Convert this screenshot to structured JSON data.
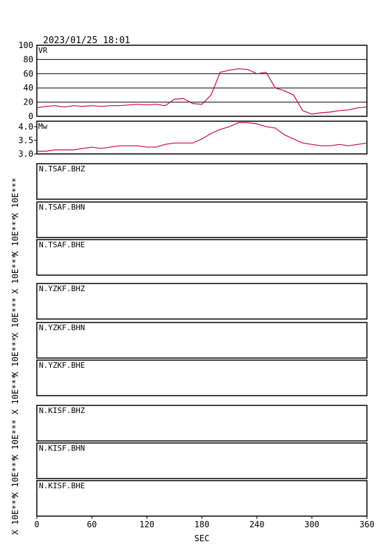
{
  "title": "2023/01/25 18:01",
  "chart_data": [
    {
      "type": "line",
      "label": "VR",
      "color": "#cc0044",
      "x": [
        0,
        10,
        20,
        30,
        40,
        50,
        60,
        70,
        80,
        90,
        100,
        110,
        120,
        130,
        140,
        150,
        160,
        170,
        180,
        190,
        200,
        210,
        220,
        230,
        240,
        250,
        260,
        270,
        280,
        290,
        300,
        310,
        320,
        330,
        340,
        350,
        360
      ],
      "values": [
        12,
        14,
        15,
        13,
        15,
        14,
        15,
        14,
        15,
        15,
        16,
        17,
        16,
        17,
        15,
        24,
        25,
        18,
        17,
        30,
        62,
        65,
        67,
        66,
        60,
        62,
        40,
        36,
        30,
        8,
        3,
        5,
        6,
        8,
        9,
        12,
        13
      ],
      "xlim": [
        0,
        360
      ],
      "ylim": [
        0,
        100
      ],
      "yticks": [
        0,
        20,
        40,
        60,
        80,
        100
      ],
      "grid": true
    },
    {
      "type": "line",
      "label": "Mw",
      "color": "#cc0044",
      "x": [
        0,
        10,
        20,
        30,
        40,
        50,
        60,
        70,
        80,
        90,
        100,
        110,
        120,
        130,
        140,
        150,
        160,
        170,
        180,
        190,
        200,
        210,
        220,
        230,
        240,
        250,
        260,
        270,
        280,
        290,
        300,
        310,
        320,
        330,
        340,
        350,
        360
      ],
      "values": [
        3.1,
        3.1,
        3.15,
        3.15,
        3.15,
        3.2,
        3.25,
        3.2,
        3.25,
        3.3,
        3.3,
        3.3,
        3.25,
        3.25,
        3.35,
        3.4,
        3.4,
        3.4,
        3.55,
        3.75,
        3.9,
        4.0,
        4.15,
        4.15,
        4.1,
        4.0,
        3.95,
        3.7,
        3.55,
        3.4,
        3.35,
        3.3,
        3.3,
        3.35,
        3.3,
        3.35,
        3.4
      ],
      "xlim": [
        0,
        360
      ],
      "ylim": [
        3.0,
        4.2
      ],
      "yticks": [
        {
          "value": 3,
          "label": "3.0"
        },
        3.5,
        {
          "value": 4,
          "label": "4.0"
        }
      ],
      "grid": false
    },
    {
      "type": "panels",
      "xlabel": "SEC",
      "xlim": [
        0,
        360
      ],
      "xticks": [
        0,
        60,
        120,
        180,
        240,
        300,
        360
      ],
      "panels": [
        {
          "label": "N.TSAF.BHZ",
          "scale": "X 10E***"
        },
        {
          "label": "N.TSAF.BHN",
          "scale": "X 10E***"
        },
        {
          "label": "N.TSAF.BHE",
          "scale": "X 10E***"
        },
        {
          "label": "N.YZKF.BHZ",
          "scale": "X 10E***"
        },
        {
          "label": "N.YZKF.BHN",
          "scale": "X 10E***"
        },
        {
          "label": "N.YZKF.BHE",
          "scale": "X 10E***"
        },
        {
          "label": "N.KISF.BHZ",
          "scale": "X 10E***"
        },
        {
          "label": "N.KISF.BHN",
          "scale": "X 10E***"
        },
        {
          "label": "N.KISF.BHE",
          "scale": "X 10E***"
        }
      ]
    }
  ]
}
